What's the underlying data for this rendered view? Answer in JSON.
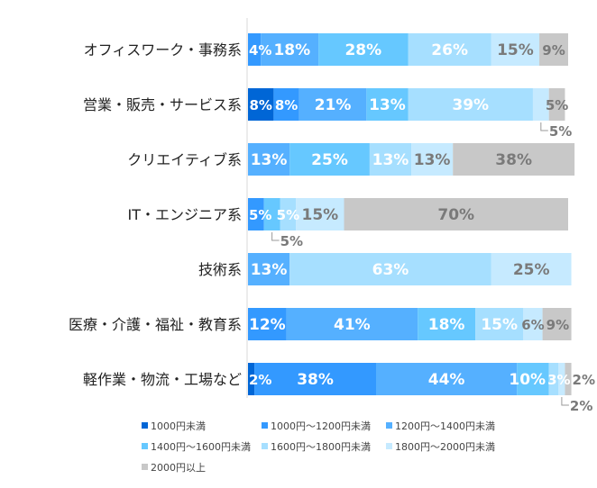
{
  "chart_data": {
    "type": "bar",
    "orientation": "horizontal",
    "stacked": true,
    "percent_stacked": true,
    "categories": [
      "オフィスワーク・事務系",
      "営業・販売・サービス系",
      "クリエイティブ系",
      "IT・エンジニア系",
      "技術系",
      "医療・介護・福祉・教育系",
      "軽作業・物流・工場など"
    ],
    "series": [
      {
        "name": "1000円未満",
        "color": "#0066d6",
        "values": [
          0,
          8,
          0,
          0,
          0,
          0,
          2
        ]
      },
      {
        "name": "1000円～1200円未満",
        "color": "#3399ff",
        "values": [
          4,
          8,
          0,
          5,
          0,
          12,
          38
        ]
      },
      {
        "name": "1200円～1400円未満",
        "color": "#55b0ff",
        "values": [
          18,
          21,
          13,
          0,
          13,
          41,
          44
        ]
      },
      {
        "name": "1400円～1600円未満",
        "color": "#66c8ff",
        "values": [
          28,
          13,
          25,
          5,
          0,
          18,
          10
        ]
      },
      {
        "name": "1600円～1800円未満",
        "color": "#a6dfff",
        "values": [
          26,
          39,
          13,
          5,
          63,
          15,
          3
        ]
      },
      {
        "name": "1800円～2000円未満",
        "color": "#c6eaff",
        "values": [
          15,
          5,
          13,
          15,
          25,
          6,
          2
        ]
      },
      {
        "name": "2000円以上",
        "color": "#c8c8c8",
        "values": [
          9,
          5,
          38,
          70,
          0,
          9,
          2
        ]
      }
    ],
    "value_suffix": "%",
    "leader_labels": [
      {
        "category": 1,
        "series": 5
      },
      {
        "category": 3,
        "series": 3
      },
      {
        "category": 6,
        "series": 5
      }
    ],
    "xlim": [
      0,
      100
    ],
    "grid": false,
    "legend_position": "bottom",
    "label_colors": {
      "dark_bg": "#ffffff",
      "light_bg": "#7a7a7a"
    }
  }
}
